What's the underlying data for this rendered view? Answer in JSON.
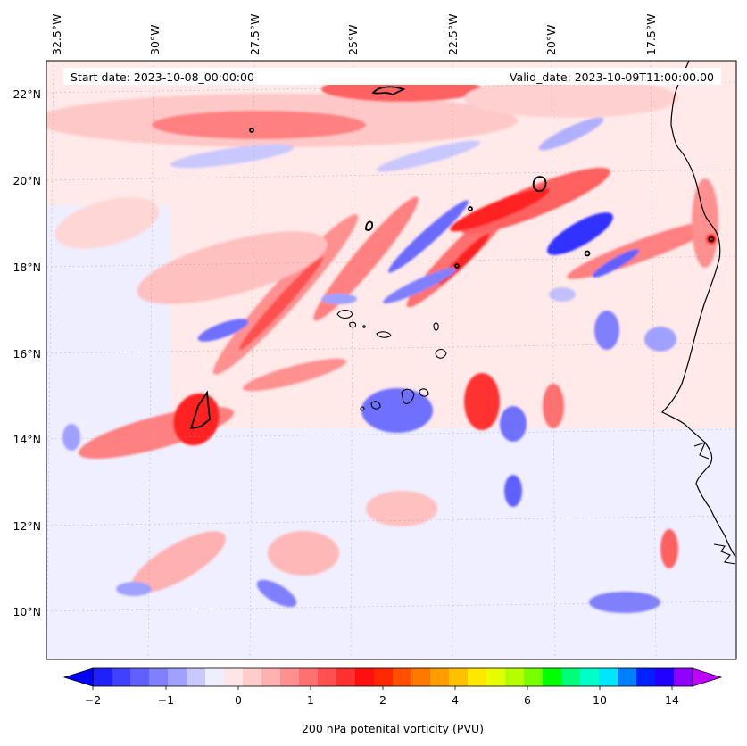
{
  "map": {
    "start_date": "Start date: 2023-10-08_00:00:00",
    "valid_date": "Valid_date: 2023-10-09T11:00:00.00",
    "lon_labels": [
      "32.5°W",
      "30°W",
      "27.5°W",
      "25°W",
      "22.5°W",
      "20°W",
      "17.5°W"
    ],
    "lat_labels": [
      "22°N",
      "20°N",
      "18°N",
      "16°N",
      "14°N",
      "12°N",
      "10°N"
    ],
    "features": [
      "Cape Verde Islands",
      "West African coastline"
    ]
  },
  "colorbar": {
    "label": "200 hPa potenital vorticity (PVU)",
    "tick_labels": [
      "−2",
      "−1",
      "0",
      "1",
      "2",
      "4",
      "6",
      "10",
      "14"
    ],
    "colors": [
      "#0000ff",
      "#2020ff",
      "#4040ff",
      "#6060ff",
      "#8080ff",
      "#a0a0ff",
      "#c8c8ff",
      "#eeeeff",
      "#ffe6e6",
      "#ffcccc",
      "#ffb0b0",
      "#ff9090",
      "#ff7070",
      "#ff5050",
      "#ff3030",
      "#ff1010",
      "#ff2800",
      "#ff5000",
      "#ff7800",
      "#ff9c00",
      "#ffc000",
      "#ffe800",
      "#e6ff00",
      "#b4ff00",
      "#78ff00",
      "#00ff00",
      "#00ff78",
      "#00ffc8",
      "#00e6ff",
      "#0080ff",
      "#0020ff",
      "#2000ff",
      "#9000ff",
      "#c000ff"
    ]
  }
}
